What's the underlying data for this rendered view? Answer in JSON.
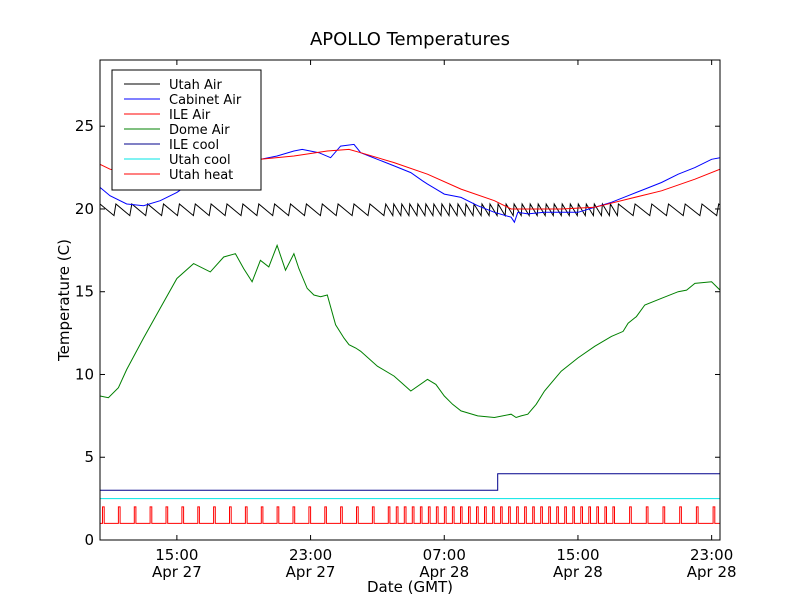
{
  "chart_data": {
    "type": "line",
    "title": "APOLLO Temperatures",
    "xlabel": "Date (GMT)",
    "ylabel": "Temperature (C)",
    "x_unit": "hours since Apr 27 00:00 GMT",
    "xlim": [
      10.4,
      47.5
    ],
    "ylim": [
      0,
      29
    ],
    "yticks": [
      0,
      5,
      10,
      15,
      20,
      25
    ],
    "xticks": [
      {
        "value": 15,
        "time": "15:00",
        "date": "Apr 27"
      },
      {
        "value": 23,
        "time": "23:00",
        "date": "Apr 27"
      },
      {
        "value": 31,
        "time": "07:00",
        "date": "Apr 28"
      },
      {
        "value": 39,
        "time": "15:00",
        "date": "Apr 28"
      },
      {
        "value": 47,
        "time": "23:00",
        "date": "Apr 28"
      }
    ],
    "legend_position": "top-left",
    "series": [
      {
        "name": "Utah Air",
        "color": "#000000",
        "style": "sawtooth",
        "base": 19.6,
        "peak": 20.3,
        "period_early": 0.95,
        "period_mid": 0.48,
        "period_late": 1.0,
        "fast_start": 27.0,
        "fast_end": 41.0
      },
      {
        "name": "Cabinet Air",
        "color": "#0000ff",
        "style": "line",
        "x": [
          10.4,
          11.0,
          12.0,
          13.0,
          14.0,
          15.0,
          16.0,
          17.0,
          18.0,
          19.0,
          20.0,
          21.0,
          22.0,
          22.5,
          23.5,
          24.2,
          24.8,
          25.6,
          26.0,
          26.5,
          27.0,
          28.0,
          29.0,
          29.7,
          30.0,
          30.5,
          31.0,
          32.0,
          33.0,
          34.0,
          35.0,
          35.2,
          35.4,
          36.0,
          37.0,
          38.0,
          39.0,
          40.0,
          41.0,
          42.0,
          43.0,
          44.0,
          45.0,
          46.0,
          47.0,
          47.5
        ],
        "y": [
          21.3,
          20.8,
          20.3,
          20.2,
          20.5,
          21.0,
          21.7,
          22.1,
          22.4,
          22.7,
          23.0,
          23.2,
          23.5,
          23.6,
          23.4,
          23.1,
          23.8,
          23.9,
          23.4,
          23.2,
          23.0,
          22.6,
          22.2,
          21.7,
          21.5,
          21.2,
          20.9,
          20.7,
          20.2,
          19.8,
          19.5,
          19.2,
          19.8,
          19.7,
          19.8,
          19.8,
          19.8,
          20.1,
          20.4,
          20.8,
          21.2,
          21.6,
          22.1,
          22.5,
          23.0,
          23.1
        ]
      },
      {
        "name": "ILE Air",
        "color": "#ff0000",
        "style": "line",
        "x": [
          10.4,
          11.0,
          12.0,
          13.0,
          14.0,
          16.0,
          18.0,
          20.0,
          22.0,
          24.0,
          25.3,
          26.0,
          28.0,
          30.0,
          32.0,
          34.0,
          35.0,
          36.0,
          38.0,
          40.0,
          42.0,
          44.0,
          46.0,
          47.5
        ],
        "y": [
          22.7,
          22.4,
          22.2,
          22.1,
          22.1,
          22.3,
          22.7,
          23.0,
          23.2,
          23.5,
          23.6,
          23.4,
          22.8,
          22.1,
          21.2,
          20.5,
          20.0,
          20.0,
          20.0,
          20.1,
          20.6,
          21.1,
          21.8,
          22.4
        ]
      },
      {
        "name": "Dome Air",
        "color": "#008000",
        "style": "line",
        "x": [
          10.4,
          10.9,
          11.5,
          12.0,
          13.0,
          14.0,
          15.0,
          16.0,
          17.0,
          17.8,
          18.5,
          19.0,
          19.5,
          20.0,
          20.5,
          21.0,
          21.5,
          22.0,
          22.3,
          22.8,
          23.2,
          23.6,
          24.0,
          24.5,
          25.0,
          25.3,
          25.7,
          26.0,
          27.0,
          28.0,
          29.0,
          30.0,
          30.5,
          31.0,
          31.5,
          32.0,
          33.0,
          34.0,
          35.0,
          35.3,
          35.6,
          36.0,
          36.5,
          37.0,
          38.0,
          39.0,
          40.0,
          41.0,
          41.7,
          42.0,
          42.5,
          43.0,
          44.0,
          45.0,
          45.5,
          46.0,
          47.0,
          47.5
        ],
        "y": [
          8.7,
          8.6,
          9.2,
          10.3,
          12.2,
          14.0,
          15.8,
          16.7,
          16.2,
          17.1,
          17.3,
          16.4,
          15.6,
          16.9,
          16.5,
          17.8,
          16.3,
          17.3,
          16.4,
          15.2,
          14.8,
          14.7,
          14.8,
          13.0,
          12.2,
          11.8,
          11.6,
          11.4,
          10.5,
          9.9,
          9.0,
          9.7,
          9.4,
          8.7,
          8.2,
          7.8,
          7.5,
          7.4,
          7.6,
          7.4,
          7.5,
          7.6,
          8.2,
          9.0,
          10.2,
          11.0,
          11.7,
          12.3,
          12.6,
          13.1,
          13.5,
          14.2,
          14.6,
          15.0,
          15.1,
          15.5,
          15.6,
          15.1
        ]
      },
      {
        "name": "ILE cool",
        "color": "#00008b",
        "style": "step",
        "x": [
          10.4,
          34.2,
          34.2,
          47.5
        ],
        "y": [
          3.0,
          3.0,
          4.0,
          4.0
        ]
      },
      {
        "name": "Utah cool",
        "color": "#00e5e5",
        "style": "line",
        "x": [
          10.4,
          47.5
        ],
        "y": [
          2.5,
          2.5
        ]
      },
      {
        "name": "Utah heat",
        "color": "#ff0000",
        "style": "pulses",
        "base": 1.0,
        "peak": 2.0,
        "period_early": 0.95,
        "period_mid": 0.48,
        "period_late": 1.0,
        "fast_start": 27.0,
        "fast_end": 41.0
      }
    ]
  }
}
